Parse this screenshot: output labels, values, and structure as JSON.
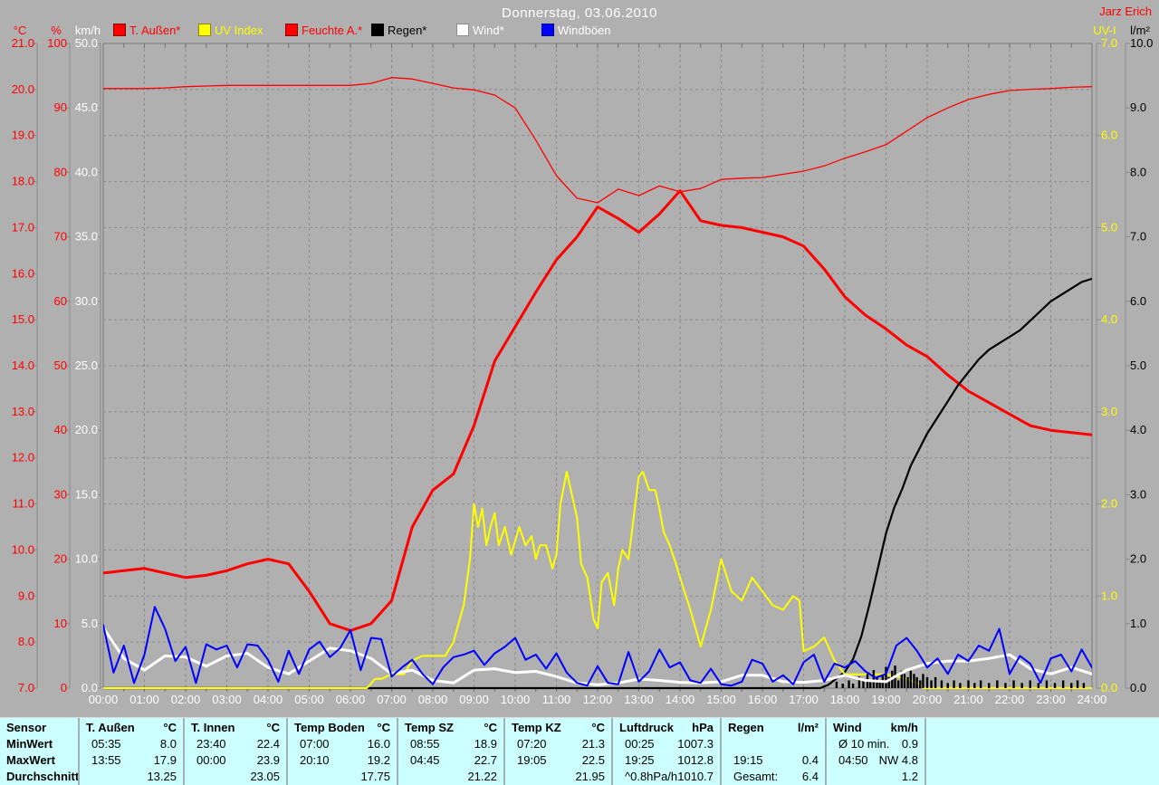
{
  "header": {
    "title": "Donnerstag, 03.06.2010",
    "watermark": "Jarz Erich",
    "title_color": "#ffffff",
    "watermark_color": "#ff0000"
  },
  "legend": [
    {
      "label": "T. Außen*",
      "marker": "#ff0000",
      "text": "#ff0000"
    },
    {
      "label": "UV Index",
      "marker": "#ffff00",
      "text": "#ffff00"
    },
    {
      "label": "Feuchte A.*",
      "marker": "#ff0000",
      "text": "#ff0000"
    },
    {
      "label": "Regen*",
      "marker": "#000000",
      "text": "#000000"
    },
    {
      "label": "Wind*",
      "marker": "#ffffff",
      "text": "#ffffff"
    },
    {
      "label": "Windböen",
      "marker": "#0000ff",
      "text": "#ffffff"
    }
  ],
  "axes": {
    "temp": {
      "unit": "°C",
      "color": "#ff0000",
      "min": 7,
      "max": 21,
      "ticks": [
        "21.0",
        "20.0",
        "19.0",
        "18.0",
        "17.0",
        "16.0",
        "15.0",
        "14.0",
        "13.0",
        "12.0",
        "11.0",
        "10.0",
        "9.0",
        "8.0",
        "7.0"
      ]
    },
    "humidity": {
      "unit": "%",
      "color": "#ff0000",
      "min": 0,
      "max": 100,
      "ticks": [
        "100",
        "90",
        "80",
        "70",
        "60",
        "50",
        "40",
        "30",
        "20",
        "10",
        "0"
      ]
    },
    "wind": {
      "unit": "km/h",
      "color": "#ffffff",
      "min": 0,
      "max": 50,
      "ticks": [
        "50.0",
        "45.0",
        "40.0",
        "35.0",
        "30.0",
        "25.0",
        "20.0",
        "15.0",
        "10.0",
        "5.0",
        "0.0"
      ]
    },
    "uv": {
      "unit": "UV-I",
      "color": "#ffff00",
      "min": 0,
      "max": 7,
      "ticks": [
        "7.0",
        "6.0",
        "5.0",
        "4.0",
        "3.0",
        "2.0",
        "1.0",
        "0.0"
      ]
    },
    "rain": {
      "unit": "l/m²",
      "color": "#000000",
      "min": 0,
      "max": 10,
      "ticks": [
        "10.0",
        "9.0",
        "8.0",
        "7.0",
        "6.0",
        "5.0",
        "4.0",
        "3.0",
        "2.0",
        "1.0",
        "0.0"
      ]
    },
    "time": {
      "labels": [
        "00:00",
        "01:00",
        "02:00",
        "03:00",
        "04:00",
        "05:00",
        "06:00",
        "07:00",
        "08:00",
        "09:00",
        "10:00",
        "11:00",
        "12:00",
        "13:00",
        "14:00",
        "15:00",
        "16:00",
        "17:00",
        "18:00",
        "19:00",
        "20:00",
        "21:00",
        "22:00",
        "23:00",
        "24:00"
      ]
    }
  },
  "chart_data": {
    "type": "line",
    "title": "Donnerstag, 03.06.2010",
    "x_unit": "hours (0-24)",
    "grid": "dashed, hourly vertical / 1°C horizontal",
    "series": [
      {
        "name": "T. Außen",
        "axis": "temp",
        "color": "#ff0000",
        "width": 3,
        "x_start": 0,
        "x_step": 0.5,
        "values": [
          9.5,
          9.55,
          9.6,
          9.5,
          9.4,
          9.45,
          9.55,
          9.7,
          9.8,
          9.7,
          9.1,
          8.4,
          8.25,
          8.4,
          8.9,
          10.5,
          11.3,
          11.65,
          12.7,
          14.1,
          14.85,
          15.6,
          16.3,
          16.8,
          17.45,
          17.2,
          16.9,
          17.3,
          17.8,
          17.15,
          17.05,
          17.0,
          16.9,
          16.8,
          16.6,
          16.1,
          15.5,
          15.1,
          14.8,
          14.45,
          14.2,
          13.8,
          13.45,
          13.2,
          12.95,
          12.7,
          12.6,
          12.55,
          12.5
        ]
      },
      {
        "name": "Feuchte A.",
        "axis": "humidity",
        "color": "#ff0000",
        "width": 1.3,
        "x_start": 0,
        "x_step": 0.5,
        "values": [
          93,
          93,
          93,
          93.1,
          93.3,
          93.4,
          93.5,
          93.5,
          93.5,
          93.5,
          93.5,
          93.5,
          93.5,
          93.8,
          94.7,
          94.5,
          93.8,
          93.1,
          92.8,
          92.0,
          90.0,
          85.0,
          79.5,
          76.0,
          75.3,
          77.4,
          76.4,
          77.9,
          77.0,
          77.5,
          78.9,
          79.1,
          79.2,
          79.7,
          80.2,
          81.0,
          82.2,
          83.2,
          84.3,
          86.4,
          88.5,
          90.0,
          91.3,
          92.1,
          92.7,
          92.9,
          93.0,
          93.2,
          93.3
        ]
      },
      {
        "name": "UV Index",
        "axis": "uv",
        "color": "#ffff00",
        "width": 2,
        "x": [
          0,
          6.4,
          6.6,
          6.75,
          7.0,
          7.3,
          7.5,
          7.75,
          8.0,
          8.3,
          8.5,
          8.75,
          8.9,
          9.0,
          9.1,
          9.2,
          9.3,
          9.4,
          9.5,
          9.6,
          9.75,
          9.9,
          10.0,
          10.1,
          10.25,
          10.4,
          10.5,
          10.6,
          10.75,
          10.9,
          11.0,
          11.1,
          11.25,
          11.4,
          11.5,
          11.6,
          11.75,
          11.9,
          12.0,
          12.1,
          12.25,
          12.4,
          12.5,
          12.6,
          12.75,
          12.9,
          13.0,
          13.1,
          13.25,
          13.4,
          13.5,
          13.6,
          13.75,
          13.9,
          14.0,
          14.25,
          14.5,
          14.75,
          15.0,
          15.25,
          15.5,
          15.75,
          16.0,
          16.25,
          16.5,
          16.75,
          16.9,
          17.0,
          17.25,
          17.5,
          17.75,
          18.0,
          18.5,
          19.0,
          19.5,
          19.8,
          19.9,
          24.0
        ],
        "values": [
          0,
          0,
          0.1,
          0.1,
          0.15,
          0.15,
          0.3,
          0.35,
          0.35,
          0.35,
          0.5,
          0.9,
          1.4,
          2.0,
          1.75,
          1.95,
          1.55,
          1.75,
          1.9,
          1.55,
          1.75,
          1.45,
          1.6,
          1.75,
          1.55,
          1.65,
          1.4,
          1.55,
          1.55,
          1.3,
          1.45,
          2.0,
          2.35,
          2.05,
          1.85,
          1.35,
          1.2,
          0.75,
          0.65,
          1.15,
          1.25,
          0.9,
          1.3,
          1.5,
          1.4,
          1.95,
          2.3,
          2.35,
          2.15,
          2.15,
          1.95,
          1.7,
          1.55,
          1.35,
          1.2,
          0.85,
          0.45,
          0.85,
          1.4,
          1.05,
          0.95,
          1.2,
          1.05,
          0.9,
          0.85,
          1.0,
          0.95,
          0.4,
          0.45,
          0.55,
          0.3,
          0.15,
          0.15,
          0.15,
          0.1,
          0.05,
          0,
          0
        ]
      },
      {
        "name": "Regen",
        "axis": "rain",
        "color": "#000000",
        "width": 2.2,
        "x": [
          0,
          17.4,
          17.6,
          17.8,
          18.0,
          18.2,
          18.4,
          18.6,
          18.8,
          19.0,
          19.2,
          19.4,
          19.6,
          19.8,
          20.0,
          20.25,
          20.5,
          20.75,
          21.0,
          21.25,
          21.5,
          21.75,
          22.0,
          22.25,
          22.5,
          22.75,
          23.0,
          23.25,
          23.5,
          23.75,
          24.0
        ],
        "values": [
          0,
          0,
          0.05,
          0.15,
          0.25,
          0.45,
          0.8,
          1.3,
          1.85,
          2.4,
          2.8,
          3.1,
          3.45,
          3.7,
          3.95,
          4.2,
          4.45,
          4.7,
          4.9,
          5.1,
          5.25,
          5.35,
          5.45,
          5.55,
          5.7,
          5.85,
          6.0,
          6.1,
          6.2,
          6.3,
          6.35
        ]
      },
      {
        "name": "Wind",
        "axis": "wind",
        "color": "#ffffff",
        "width": 3,
        "x_start": 0,
        "x_step": 0.5,
        "values": [
          4.7,
          2.3,
          1.4,
          2.5,
          2.4,
          1.7,
          2.5,
          2.7,
          1.6,
          1.1,
          2.1,
          3.1,
          2.9,
          2.3,
          1.1,
          1.4,
          0.6,
          0.4,
          1.4,
          1.5,
          1.2,
          1.3,
          0.9,
          0.4,
          0.25,
          0.4,
          0.7,
          0.6,
          0.45,
          0.4,
          0.5,
          1.0,
          1.0,
          0.5,
          0.45,
          0.6,
          1.0,
          0.6,
          0.5,
          1.4,
          1.9,
          2.1,
          2.1,
          2.3,
          2.6,
          1.5,
          1.1,
          1.6,
          1.1
        ]
      },
      {
        "name": "Windböen",
        "axis": "wind",
        "color": "#0000ff",
        "width": 2,
        "x_start": 0,
        "x_step": 0.25,
        "values": [
          4.9,
          1.2,
          3.3,
          0.4,
          2.6,
          6.3,
          4.6,
          2.1,
          3.2,
          0.4,
          3.4,
          3.0,
          3.3,
          1.6,
          3.4,
          3.3,
          2.2,
          0.5,
          2.9,
          1.1,
          3.0,
          3.6,
          2.4,
          3.1,
          4.5,
          1.4,
          3.9,
          3.8,
          0.9,
          1.6,
          2.2,
          1.1,
          0.3,
          1.6,
          2.4,
          2.6,
          2.9,
          1.8,
          2.7,
          3.2,
          3.9,
          2.2,
          2.6,
          1.5,
          2.7,
          1.2,
          0.4,
          0.2,
          1.7,
          0.4,
          0.3,
          2.8,
          0.5,
          1.3,
          3.0,
          1.6,
          2.0,
          0.6,
          0.4,
          1.5,
          0.3,
          0.2,
          0.5,
          2.2,
          1.9,
          0.5,
          1.0,
          0.3,
          2.0,
          2.6,
          0.5,
          1.9,
          1.6,
          2.1,
          1.3,
          0.8,
          1.1,
          3.3,
          3.9,
          2.9,
          1.6,
          2.3,
          1.1,
          2.6,
          2.1,
          3.3,
          2.9,
          4.6,
          1.1,
          2.5,
          1.9,
          0.4,
          2.3,
          2.6,
          1.3,
          3.0,
          1.6
        ]
      }
    ],
    "rain_bars": {
      "axis": "rain",
      "color": "#000000",
      "points": [
        [
          17.8,
          0.1
        ],
        [
          17.95,
          0.07
        ],
        [
          18.1,
          0.12
        ],
        [
          18.2,
          0.07
        ],
        [
          18.35,
          0.18
        ],
        [
          18.45,
          0.12
        ],
        [
          18.55,
          0.22
        ],
        [
          18.62,
          0.12
        ],
        [
          18.7,
          0.28
        ],
        [
          18.78,
          0.17
        ],
        [
          18.85,
          0.12
        ],
        [
          18.92,
          0.2
        ],
        [
          19.0,
          0.33
        ],
        [
          19.07,
          0.17
        ],
        [
          19.15,
          0.27
        ],
        [
          19.22,
          0.35
        ],
        [
          19.3,
          0.12
        ],
        [
          19.38,
          0.27
        ],
        [
          19.45,
          0.22
        ],
        [
          19.53,
          0.17
        ],
        [
          19.6,
          0.27
        ],
        [
          19.68,
          0.22
        ],
        [
          19.75,
          0.17
        ],
        [
          19.83,
          0.12
        ],
        [
          19.9,
          0.22
        ],
        [
          20.0,
          0.17
        ],
        [
          20.1,
          0.12
        ],
        [
          20.2,
          0.17
        ],
        [
          20.35,
          0.12
        ],
        [
          20.5,
          0.08
        ],
        [
          20.65,
          0.12
        ],
        [
          20.8,
          0.08
        ],
        [
          21.0,
          0.12
        ],
        [
          21.15,
          0.08
        ],
        [
          21.3,
          0.12
        ],
        [
          21.5,
          0.08
        ],
        [
          21.7,
          0.12
        ],
        [
          21.9,
          0.08
        ],
        [
          22.1,
          0.12
        ],
        [
          22.3,
          0.08
        ],
        [
          22.5,
          0.12
        ],
        [
          22.7,
          0.08
        ],
        [
          22.9,
          0.12
        ],
        [
          23.1,
          0.08
        ],
        [
          23.3,
          0.12
        ],
        [
          23.5,
          0.08
        ],
        [
          23.65,
          0.12
        ],
        [
          23.8,
          0.08
        ]
      ]
    }
  },
  "stats": {
    "row_labels": {
      "header": "Sensor",
      "min": "MinWert",
      "max": "MaxWert",
      "avg": "Durchschnitt"
    },
    "columns": [
      {
        "name": "T. Außen",
        "unit": "°C",
        "min_time": "05:35",
        "min_value": "8.0",
        "max_time": "13:55",
        "max_value": "17.9",
        "avg_time": "",
        "avg_value": "13.25"
      },
      {
        "name": "T. Innen",
        "unit": "°C",
        "min_time": "23:40",
        "min_value": "22.4",
        "max_time": "00:00",
        "max_value": "23.9",
        "avg_time": "",
        "avg_value": "23.05"
      },
      {
        "name": "Temp Boden",
        "unit": "°C",
        "min_time": "07:00",
        "min_value": "16.0",
        "max_time": "20:10",
        "max_value": "19.2",
        "avg_time": "",
        "avg_value": "17.75"
      },
      {
        "name": "Temp SZ",
        "unit": "°C",
        "min_time": "08:55",
        "min_value": "18.9",
        "max_time": "04:45",
        "max_value": "22.7",
        "avg_time": "",
        "avg_value": "21.22"
      },
      {
        "name": "Temp KZ",
        "unit": "°C",
        "min_time": "07:20",
        "min_value": "21.3",
        "max_time": "19:05",
        "max_value": "22.5",
        "avg_time": "",
        "avg_value": "21.95"
      },
      {
        "name": "Luftdruck",
        "unit": "hPa",
        "min_time": "00:25",
        "min_value": "1007.3",
        "max_time": "19:25",
        "max_value": "1012.8",
        "avg_time": "^0.8hPa/h",
        "avg_value": "1010.7"
      },
      {
        "name": "Regen",
        "unit": "l/m²",
        "min_time": "",
        "min_value": "",
        "max_time": "19:15",
        "max_value": "0.4",
        "avg_time": "Gesamt:",
        "avg_value": "6.4"
      },
      {
        "name": "Wind",
        "unit": "km/h",
        "min_time": "Ø 10 min.",
        "min_value": "0.9",
        "max_time": "04:50",
        "max_value": "NW 4.8",
        "avg_time": "",
        "avg_value": "1.2"
      }
    ]
  }
}
